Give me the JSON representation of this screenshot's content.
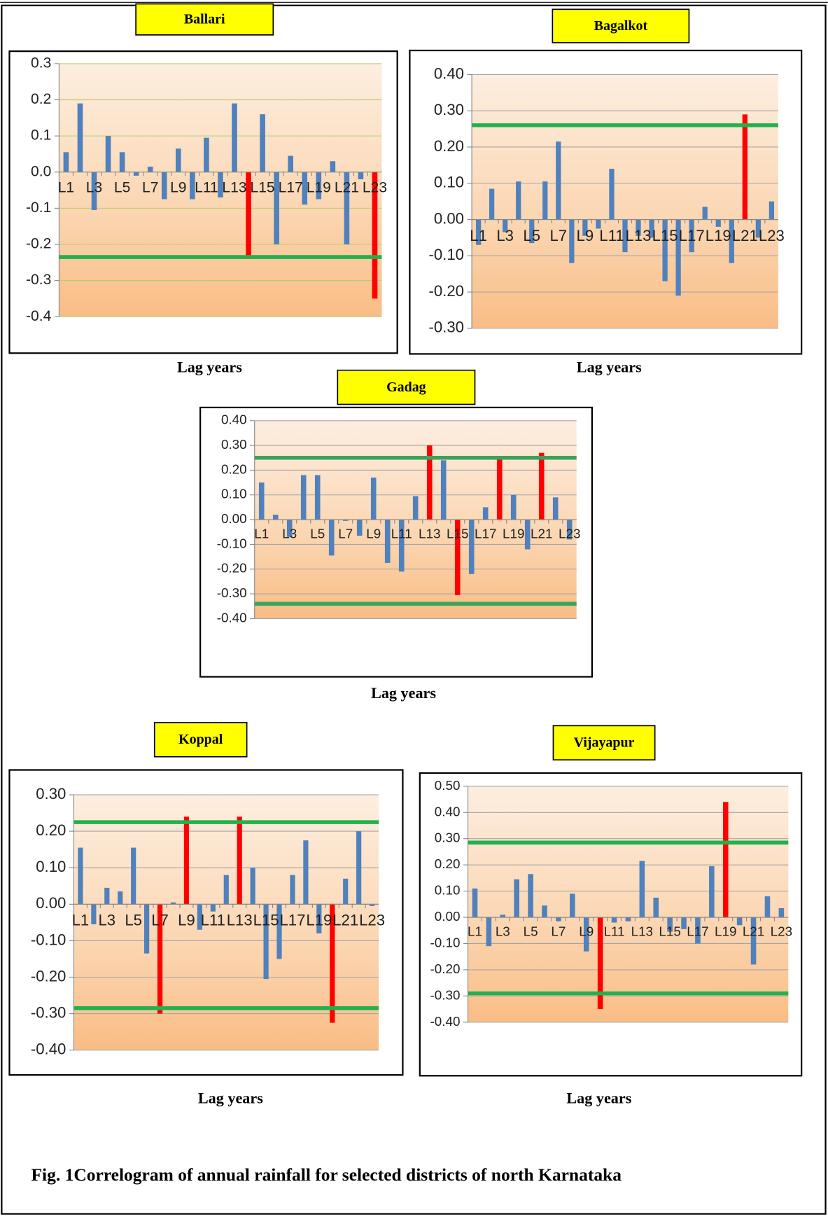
{
  "chart_data": [
    {
      "type": "bar",
      "title": "Ballari",
      "xlabel": "Lag years",
      "categories": [
        "L1",
        null,
        "L3",
        null,
        "L5",
        null,
        "L7",
        null,
        "L9",
        null,
        "L11",
        null,
        "L13",
        null,
        "L15",
        null,
        "L17",
        null,
        "L19",
        null,
        "L21",
        null,
        "L23"
      ],
      "values": [
        0.055,
        0.19,
        -0.105,
        0.1,
        0.055,
        -0.01,
        0.015,
        -0.075,
        0.065,
        -0.075,
        0.095,
        -0.07,
        0.19,
        -0.23,
        0.16,
        -0.2,
        0.045,
        -0.09,
        -0.075,
        0.03,
        -0.2,
        -0.02,
        -0.35
      ],
      "bar_colors": [
        "#4f81bd",
        "#4f81bd",
        "#4f81bd",
        "#4f81bd",
        "#4f81bd",
        "#4f81bd",
        "#4f81bd",
        "#4f81bd",
        "#4f81bd",
        "#4f81bd",
        "#4f81bd",
        "#4f81bd",
        "#4f81bd",
        "#ff0000",
        "#4f81bd",
        "#4f81bd",
        "#4f81bd",
        "#4f81bd",
        "#4f81bd",
        "#4f81bd",
        "#4f81bd",
        "#4f81bd",
        "#ff0000"
      ],
      "ylim": [
        -0.4,
        0.3
      ],
      "yticks": [
        -0.4,
        -0.3,
        -0.2,
        -0.1,
        {
          "value": 0,
          "label": "0.0"
        },
        0.1,
        0.2,
        0.3
      ],
      "grid": true,
      "grid_color": "#b5cf6e",
      "reference_lines": [
        {
          "value": -0.235,
          "color": "#22b14c"
        }
      ]
    },
    {
      "type": "bar",
      "title": "Bagalkot",
      "xlabel": "Lag years",
      "categories": [
        "L1",
        null,
        "L3",
        null,
        "L5",
        null,
        "L7",
        null,
        "L9",
        null,
        "L11",
        null,
        "L13",
        null,
        "L15",
        null,
        "L17",
        null,
        "L19",
        null,
        "L21",
        null,
        "L23"
      ],
      "values": [
        -0.07,
        0.085,
        -0.035,
        0.105,
        -0.065,
        0.105,
        0.215,
        -0.12,
        -0.045,
        -0.025,
        0.14,
        -0.09,
        -0.045,
        -0.05,
        -0.17,
        -0.21,
        -0.09,
        0.035,
        -0.02,
        -0.12,
        0.29,
        -0.05,
        0.05
      ],
      "bar_colors": [
        "#4f81bd",
        "#4f81bd",
        "#4f81bd",
        "#4f81bd",
        "#4f81bd",
        "#4f81bd",
        "#4f81bd",
        "#4f81bd",
        "#4f81bd",
        "#4f81bd",
        "#4f81bd",
        "#4f81bd",
        "#4f81bd",
        "#4f81bd",
        "#4f81bd",
        "#4f81bd",
        "#4f81bd",
        "#4f81bd",
        "#4f81bd",
        "#4f81bd",
        "#ff0000",
        "#4f81bd",
        "#4f81bd"
      ],
      "ylim": [
        -0.3,
        0.4
      ],
      "yticks": [
        {
          "value": -0.3,
          "label": "-0.30"
        },
        {
          "value": -0.2,
          "label": "-0.20"
        },
        {
          "value": -0.1,
          "label": "-0.10"
        },
        {
          "value": 0,
          "label": "0.00"
        },
        {
          "value": 0.1,
          "label": "0.10"
        },
        {
          "value": 0.2,
          "label": "0.20"
        },
        {
          "value": 0.3,
          "label": "0.30"
        },
        {
          "value": 0.4,
          "label": "0.40"
        }
      ],
      "grid": true,
      "grid_color": "#a6a6a6",
      "reference_lines": [
        {
          "value": 0.26,
          "color": "#22b14c"
        }
      ]
    },
    {
      "type": "bar",
      "title": "Gadag",
      "xlabel": "Lag years",
      "categories": [
        "L1",
        null,
        "L3",
        null,
        "L5",
        null,
        "L7",
        null,
        "L9",
        null,
        "L11",
        null,
        "L13",
        null,
        "L15",
        null,
        "L17",
        null,
        "L19",
        null,
        "L21",
        null,
        "L23"
      ],
      "values": [
        0.15,
        0.02,
        -0.07,
        0.18,
        0.18,
        -0.145,
        -0.005,
        -0.065,
        0.17,
        -0.175,
        -0.21,
        0.095,
        0.3,
        0.24,
        -0.305,
        -0.22,
        0.05,
        0.25,
        0.1,
        -0.12,
        0.27,
        0.09,
        -0.08
      ],
      "bar_colors": [
        "#4f81bd",
        "#4f81bd",
        "#4f81bd",
        "#4f81bd",
        "#4f81bd",
        "#4f81bd",
        "#4f81bd",
        "#4f81bd",
        "#4f81bd",
        "#4f81bd",
        "#4f81bd",
        "#4f81bd",
        "#ff0000",
        "#4f81bd",
        "#ff0000",
        "#4f81bd",
        "#4f81bd",
        "#ff0000",
        "#4f81bd",
        "#4f81bd",
        "#ff0000",
        "#4f81bd",
        "#4f81bd"
      ],
      "ylim": [
        -0.4,
        0.4
      ],
      "yticks": [
        {
          "value": -0.4,
          "label": "-0.40"
        },
        {
          "value": -0.3,
          "label": "-0.30"
        },
        {
          "value": -0.2,
          "label": "-0.20"
        },
        {
          "value": -0.1,
          "label": "-0.10"
        },
        {
          "value": 0,
          "label": "0.00"
        },
        {
          "value": 0.1,
          "label": "0.10"
        },
        {
          "value": 0.2,
          "label": "0.20"
        },
        {
          "value": 0.3,
          "label": "0.30"
        },
        {
          "value": 0.4,
          "label": "0.40"
        }
      ],
      "grid": true,
      "grid_color": "#a6a6a6",
      "reference_lines": [
        {
          "value": 0.25,
          "color": "#3aa35a"
        },
        {
          "value": -0.34,
          "color": "#3aa35a"
        }
      ]
    },
    {
      "type": "bar",
      "title": "Koppal",
      "xlabel": "Lag years",
      "categories": [
        "L1",
        null,
        "L3",
        null,
        "L5",
        null,
        "L7",
        null,
        "L9",
        null,
        "L11",
        null,
        "L13",
        null,
        "L15",
        null,
        "L17",
        null,
        "L19",
        null,
        "L21",
        null,
        "L23"
      ],
      "values": [
        0.155,
        -0.055,
        0.045,
        0.035,
        0.155,
        -0.135,
        -0.3,
        0.005,
        0.24,
        -0.07,
        -0.02,
        0.08,
        0.24,
        0.1,
        -0.205,
        -0.15,
        0.08,
        0.175,
        -0.08,
        -0.325,
        0.07,
        0.2,
        -0.005
      ],
      "bar_colors": [
        "#4f81bd",
        "#4f81bd",
        "#4f81bd",
        "#4f81bd",
        "#4f81bd",
        "#4f81bd",
        "#ff0000",
        "#4f81bd",
        "#ff0000",
        "#4f81bd",
        "#4f81bd",
        "#4f81bd",
        "#ff0000",
        "#4f81bd",
        "#4f81bd",
        "#4f81bd",
        "#4f81bd",
        "#4f81bd",
        "#4f81bd",
        "#ff0000",
        "#4f81bd",
        "#4f81bd",
        "#4f81bd"
      ],
      "ylim": [
        -0.4,
        0.3
      ],
      "yticks": [
        {
          "value": -0.4,
          "label": "-0.40"
        },
        {
          "value": -0.3,
          "label": "-0.30"
        },
        {
          "value": -0.2,
          "label": "-0.20"
        },
        {
          "value": -0.1,
          "label": "-0.10"
        },
        {
          "value": 0,
          "label": "0.00"
        },
        {
          "value": 0.1,
          "label": "0.10"
        },
        {
          "value": 0.2,
          "label": "0.20"
        },
        {
          "value": 0.3,
          "label": "0.30"
        }
      ],
      "grid": true,
      "grid_color": "#a6a6a6",
      "reference_lines": [
        {
          "value": 0.225,
          "color": "#22b14c"
        },
        {
          "value": -0.285,
          "color": "#22b14c"
        }
      ]
    },
    {
      "type": "bar",
      "title": "Vijayapur",
      "xlabel": "Lag years",
      "categories": [
        "L1",
        null,
        "L3",
        null,
        "L5",
        null,
        "L7",
        null,
        "L9",
        null,
        "L11",
        null,
        "L13",
        null,
        "L15",
        null,
        "L17",
        null,
        "L19",
        null,
        "L21",
        null,
        "L23"
      ],
      "values": [
        0.11,
        -0.11,
        0.01,
        0.145,
        0.165,
        0.045,
        -0.015,
        0.09,
        -0.13,
        -0.35,
        -0.02,
        -0.015,
        0.215,
        0.075,
        -0.055,
        -0.045,
        -0.1,
        0.195,
        0.44,
        -0.03,
        -0.18,
        0.08,
        0.035
      ],
      "bar_colors": [
        "#4f81bd",
        "#4f81bd",
        "#4f81bd",
        "#4f81bd",
        "#4f81bd",
        "#4f81bd",
        "#4f81bd",
        "#4f81bd",
        "#4f81bd",
        "#ff0000",
        "#4f81bd",
        "#4f81bd",
        "#4f81bd",
        "#4f81bd",
        "#4f81bd",
        "#4f81bd",
        "#4f81bd",
        "#4f81bd",
        "#ff0000",
        "#4f81bd",
        "#4f81bd",
        "#4f81bd",
        "#4f81bd"
      ],
      "ylim": [
        -0.4,
        0.5
      ],
      "yticks": [
        {
          "value": -0.4,
          "label": "-0.40"
        },
        {
          "value": -0.3,
          "label": "-0.30"
        },
        {
          "value": -0.2,
          "label": "-0.20"
        },
        {
          "value": -0.1,
          "label": "-0.10"
        },
        {
          "value": 0,
          "label": "0.00"
        },
        {
          "value": 0.1,
          "label": "0.10"
        },
        {
          "value": 0.2,
          "label": "0.20"
        },
        {
          "value": 0.3,
          "label": "0.30"
        },
        {
          "value": 0.4,
          "label": "0.40"
        },
        {
          "value": 0.5,
          "label": "0.50"
        }
      ],
      "grid": true,
      "grid_color": "#a6a6a6",
      "reference_lines": [
        {
          "value": 0.285,
          "color": "#22b14c"
        },
        {
          "value": -0.29,
          "color": "#22b14c"
        }
      ]
    }
  ],
  "caption": "Fig. 1Correlogram of annual rainfall for selected districts of north Karnataka"
}
